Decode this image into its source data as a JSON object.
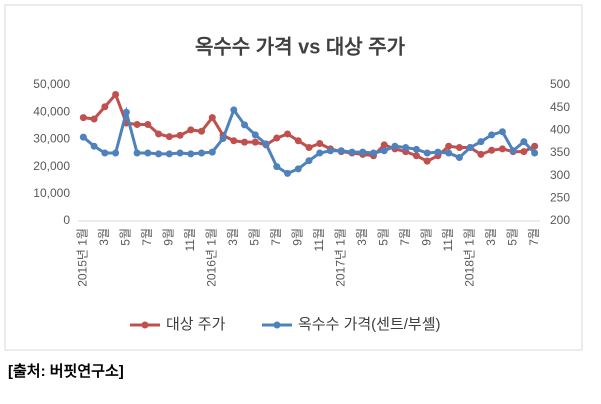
{
  "chart_data": {
    "type": "line",
    "title": "옥수수 가격 vs 대상 주가",
    "source": "[출처: 버핏연구소]",
    "categories": [
      "2015년 1월",
      null,
      "3월",
      null,
      "5월",
      null,
      "7월",
      null,
      "9월",
      null,
      "11월",
      null,
      "2016년 1월",
      null,
      "3월",
      null,
      "5월",
      null,
      "7월",
      null,
      "9월",
      null,
      "11월",
      null,
      "2017년 1월",
      null,
      "3월",
      null,
      "5월",
      null,
      "7월",
      null,
      "9월",
      null,
      "11월",
      null,
      "2018년 1월",
      null,
      "3월",
      null,
      "5월",
      null,
      "7월"
    ],
    "series": [
      {
        "name": "대상 주가",
        "color": "#c0504d",
        "values": [
          38000,
          37500,
          42000,
          46500,
          36000,
          35500,
          35500,
          32000,
          31000,
          31500,
          33500,
          33000,
          38000,
          31500,
          29500,
          29000,
          29000,
          28000,
          30500,
          32000,
          29500,
          27000,
          28500,
          26500,
          25500,
          25000,
          24500,
          24000,
          28000,
          26500,
          25500,
          24000,
          22000,
          24000,
          27500,
          27000,
          27000,
          24500,
          26000,
          26500,
          25500,
          25500,
          27500
        ]
      },
      {
        "name": "옥수수 가격(센트/부셸)",
        "color": "#4f81bd",
        "axis": "y2",
        "values": [
          385,
          365,
          350,
          350,
          440,
          350,
          350,
          348,
          348,
          350,
          348,
          350,
          352,
          382,
          445,
          412,
          390,
          370,
          320,
          305,
          315,
          333,
          350,
          355,
          355,
          352,
          352,
          350,
          355,
          365,
          362,
          358,
          350,
          352,
          350,
          340,
          362,
          375,
          390,
          397,
          355,
          375,
          350
        ]
      }
    ],
    "ylim": [
      0,
      50000
    ],
    "yticks": [
      0,
      {
        "value": 10000,
        "label": "10,000"
      },
      {
        "value": 20000,
        "label": "20,000"
      },
      {
        "value": 30000,
        "label": "30,000"
      },
      {
        "value": 40000,
        "label": "40,000"
      },
      {
        "value": 50000,
        "label": "50,000"
      }
    ],
    "y2lim": [
      200,
      500
    ],
    "y2ticks": [
      200,
      250,
      300,
      350,
      400,
      450,
      500
    ],
    "grid": false,
    "legend": "bottom"
  }
}
